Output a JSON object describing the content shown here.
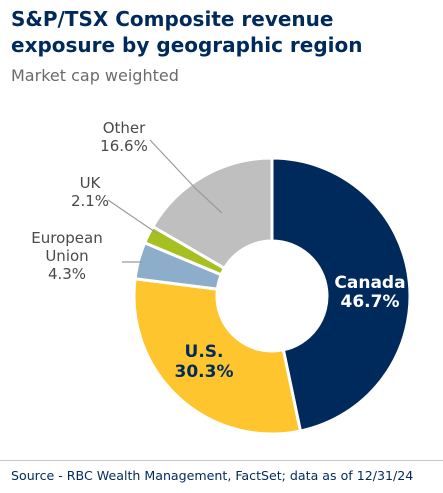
{
  "title": "S&P/TSX Composite revenue exposure by geographic region",
  "subtitle": "Market cap weighted",
  "source": "Source - RBC Wealth Management, FactSet; data as of 12/31/24",
  "chart_data": {
    "type": "pie",
    "title": "S&P/TSX Composite revenue exposure by geographic region",
    "subtitle": "Market cap weighted",
    "slices": [
      {
        "label": "Canada",
        "value": 46.7,
        "value_label": "46.7%",
        "color": "#002a5c"
      },
      {
        "label": "U.S.",
        "value": 30.3,
        "value_label": "30.3%",
        "color": "#fec52e"
      },
      {
        "label": "European Union",
        "label_lines": [
          "European",
          "Union"
        ],
        "value": 4.3,
        "value_label": "4.3%",
        "color": "#8caecb"
      },
      {
        "label": "UK",
        "value": 2.1,
        "value_label": "2.1%",
        "color": "#a7c021"
      },
      {
        "label": "Other",
        "value": 16.6,
        "value_label": "16.6%",
        "color": "#bfbfbf"
      }
    ],
    "donut": true
  }
}
